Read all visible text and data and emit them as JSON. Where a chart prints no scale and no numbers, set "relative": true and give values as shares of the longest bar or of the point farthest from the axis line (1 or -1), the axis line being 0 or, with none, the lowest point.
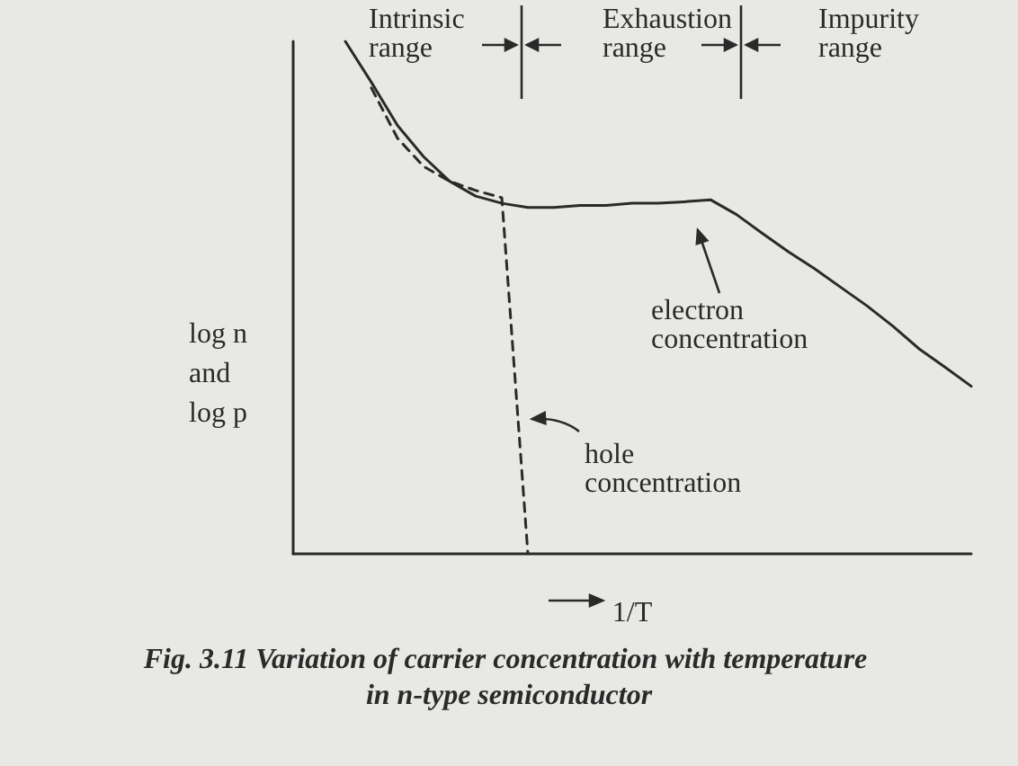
{
  "chart_data": {
    "type": "line",
    "relative": true,
    "title": "Fig. 3.11 Variation of carrier concentration with temperature in n-type semiconductor",
    "xlabel": "1/T",
    "ylabel": "log n and log p",
    "annotations": [
      "Intrinsic range",
      "Exhaustion range",
      "Impurity range",
      "electron concentration",
      "hole concentration"
    ],
    "categories": [
      null,
      null,
      null,
      null,
      null,
      null,
      null,
      null,
      null,
      null,
      null,
      null,
      null,
      null,
      null,
      null,
      null,
      null,
      null,
      null,
      null,
      null,
      null,
      null,
      null,
      null,
      null
    ],
    "series": [
      {
        "color": "#2a2a2a",
        "line_style": "solid",
        "values": [
          null,
          null,
          1,
          0.92,
          0.836,
          0.775,
          0.727,
          0.698,
          0.684,
          0.676,
          0.676,
          0.68,
          0.68,
          0.684,
          0.684,
          0.687,
          0.691,
          0.662,
          0.625,
          0.589,
          0.556,
          0.52,
          0.484,
          0.444,
          0.4,
          0.364,
          0.327
        ]
      },
      {
        "color": "#2a2a2a",
        "line_style": "dashed",
        "values": [
          null,
          null,
          null,
          0.909,
          0.811,
          0.756,
          0.727,
          0.709,
          0.695,
          0,
          null,
          null,
          null,
          null,
          null,
          null,
          null,
          null,
          null,
          null,
          null,
          null,
          null,
          null,
          null,
          null,
          null
        ]
      }
    ],
    "marker": "none",
    "grid": false,
    "legend": false
  }
}
